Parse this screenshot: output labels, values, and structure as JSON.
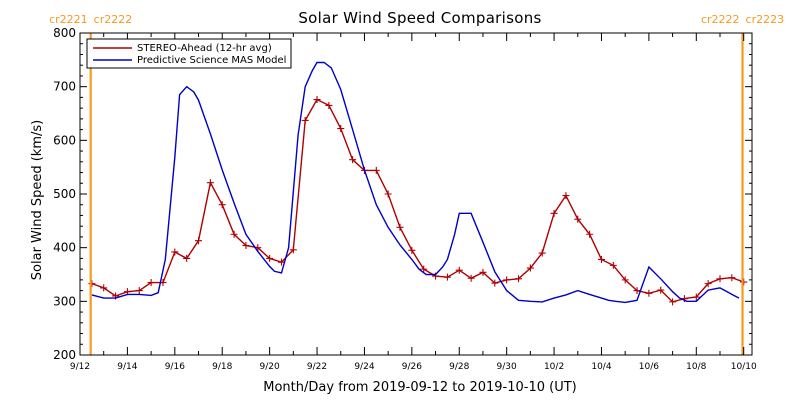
{
  "chart_data": {
    "type": "line",
    "title": "Solar Wind Speed Comparisons",
    "xlabel": "Month/Day from 2019-09-12 to 2019-10-10 (UT)",
    "ylabel": "Solar Wind Speed (km/s)",
    "xlim": [
      0,
      28.35
    ],
    "ylim": [
      200,
      800
    ],
    "yticks": [
      200,
      300,
      400,
      500,
      600,
      700,
      800
    ],
    "xticks": [
      {
        "x": 0,
        "label": "9/12"
      },
      {
        "x": 2,
        "label": "9/14"
      },
      {
        "x": 4,
        "label": "9/16"
      },
      {
        "x": 6,
        "label": "9/18"
      },
      {
        "x": 8,
        "label": "9/20"
      },
      {
        "x": 10,
        "label": "9/22"
      },
      {
        "x": 12,
        "label": "9/24"
      },
      {
        "x": 14,
        "label": "9/26"
      },
      {
        "x": 16,
        "label": "9/28"
      },
      {
        "x": 18,
        "label": "9/30"
      },
      {
        "x": 20,
        "label": "10/2"
      },
      {
        "x": 22,
        "label": "10/4"
      },
      {
        "x": 24,
        "label": "10/6"
      },
      {
        "x": 26,
        "label": "10/8"
      },
      {
        "x": 28,
        "label": "10/10"
      }
    ],
    "grid": false,
    "legend_position": "top-left",
    "carrington_markers": [
      {
        "x": 0.45,
        "left_label": "cr2221",
        "right_label": "cr2222"
      },
      {
        "x": 27.95,
        "left_label": "cr2222",
        "right_label": "cr2223"
      }
    ],
    "marker_color": "#f59a1e",
    "series": [
      {
        "name": "STEREO-Ahead (12-hr avg)",
        "color": "#b00000",
        "markers": true,
        "x": [
          0.5,
          1.0,
          1.5,
          2.0,
          2.5,
          3.0,
          3.5,
          4.0,
          4.5,
          5.0,
          5.5,
          6.0,
          6.5,
          7.0,
          7.5,
          8.0,
          8.5,
          9.0,
          9.5,
          10.0,
          10.5,
          11.0,
          11.5,
          12.0,
          12.5,
          13.0,
          13.5,
          14.0,
          14.5,
          15.0,
          15.5,
          16.0,
          16.5,
          17.0,
          17.5,
          18.0,
          18.5,
          19.0,
          19.5,
          20.0,
          20.5,
          21.0,
          21.5,
          22.0,
          22.5,
          23.0,
          23.5,
          24.0,
          24.5,
          25.0,
          25.5,
          26.0,
          26.5,
          27.0,
          27.5,
          28.0
        ],
        "values": [
          333,
          325,
          310,
          318,
          320,
          335,
          335,
          392,
          380,
          413,
          521,
          480,
          425,
          404,
          400,
          380,
          373,
          396,
          637,
          676,
          665,
          622,
          564,
          544,
          544,
          500,
          438,
          395,
          360,
          347,
          345,
          358,
          343,
          354,
          334,
          340,
          342,
          362,
          390,
          464,
          497,
          453,
          425,
          378,
          367,
          340,
          320,
          315,
          321,
          299,
          305,
          308,
          333,
          342,
          344,
          336
        ]
      },
      {
        "name": "Predictive Science MAS Model",
        "color": "#0000c8",
        "markers": false,
        "x": [
          0.5,
          1.0,
          1.5,
          2.0,
          2.5,
          3.0,
          3.3,
          3.6,
          4.0,
          4.2,
          4.5,
          4.8,
          5.0,
          5.5,
          6.0,
          6.5,
          7.0,
          7.5,
          8.0,
          8.2,
          8.5,
          8.8,
          9.2,
          9.5,
          9.8,
          10.0,
          10.3,
          10.6,
          11.0,
          11.5,
          12.0,
          12.5,
          13.0,
          13.5,
          14.0,
          14.3,
          14.6,
          15.0,
          15.3,
          15.5,
          15.8,
          16.0,
          16.5,
          17.0,
          17.5,
          18.0,
          18.5,
          19.0,
          19.5,
          20.0,
          20.5,
          21.0,
          21.5,
          22.0,
          22.3,
          22.6,
          23.0,
          23.5,
          24.0,
          24.5,
          25.0,
          25.3,
          25.6,
          26.0,
          26.5,
          27.0,
          27.5,
          27.8
        ],
        "values": [
          312,
          306,
          306,
          313,
          313,
          311,
          316,
          378,
          568,
          685,
          700,
          690,
          675,
          612,
          545,
          483,
          425,
          393,
          365,
          356,
          353,
          400,
          610,
          700,
          730,
          745,
          745,
          735,
          695,
          620,
          545,
          480,
          438,
          405,
          378,
          360,
          350,
          350,
          364,
          378,
          424,
          464,
          464,
          410,
          355,
          320,
          302,
          300,
          299,
          306,
          312,
          320,
          313,
          306,
          302,
          300,
          298,
          302,
          364,
          342,
          318,
          306,
          300,
          300,
          321,
          325,
          313,
          306
        ]
      }
    ]
  }
}
